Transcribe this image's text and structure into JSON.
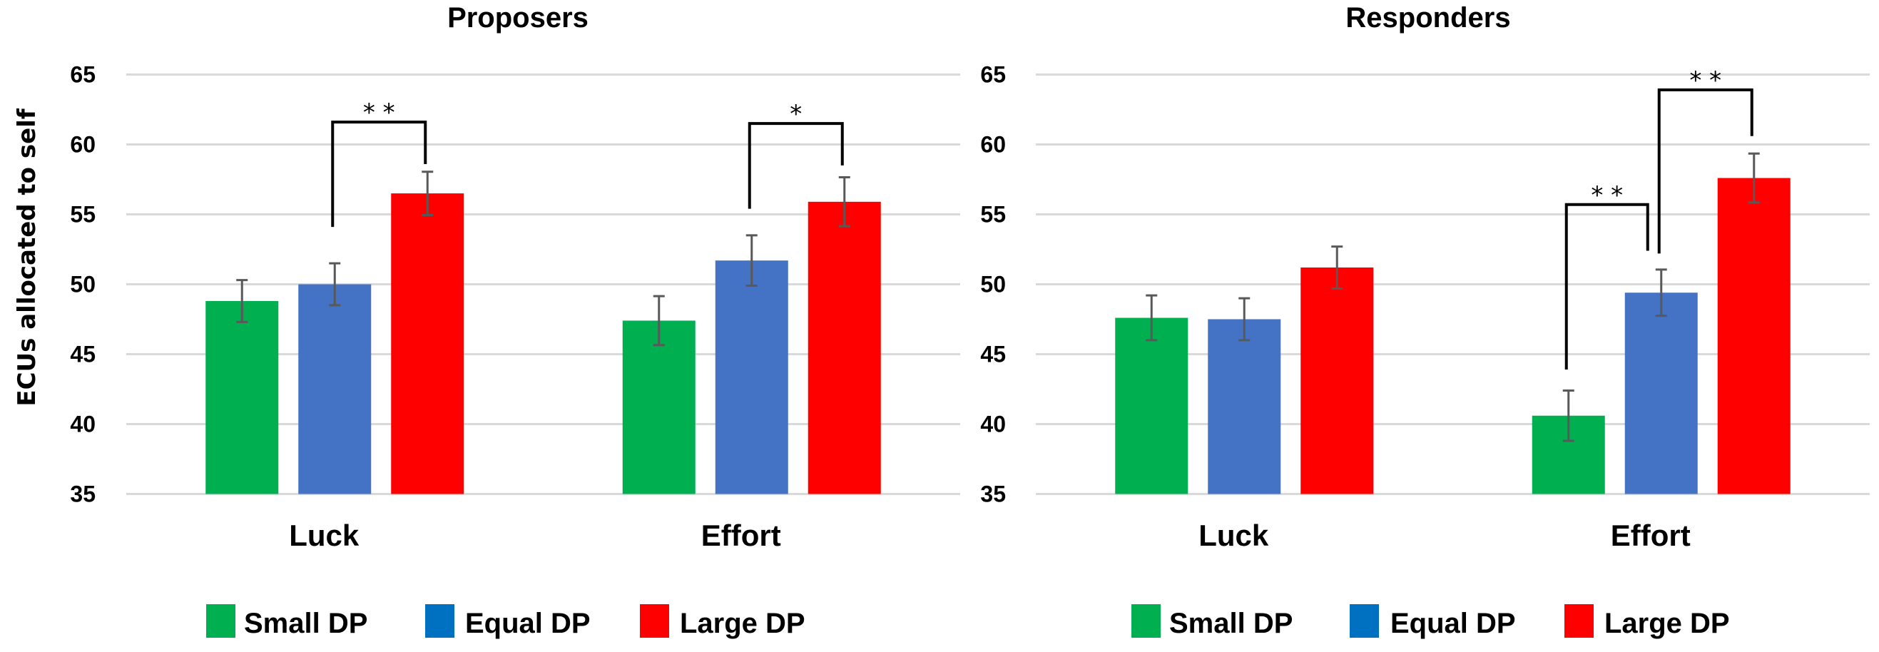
{
  "chart_data": [
    {
      "type": "bar",
      "title": "Proposers",
      "xlabel": "",
      "ylabel": "ECUs allocated to self",
      "ylim": [
        35,
        65
      ],
      "yticks": [
        "35",
        "40",
        "45",
        "50",
        "55",
        "60",
        "65"
      ],
      "grid": true,
      "categories": [
        "Luck",
        "Effort"
      ],
      "series": [
        {
          "name": "Small DP",
          "color": "#00B050",
          "values": [
            48.8,
            47.4
          ],
          "errors": [
            1.5,
            1.75
          ]
        },
        {
          "name": "Equal DP",
          "color": "#4472C4",
          "values": [
            50.0,
            51.7
          ],
          "errors": [
            1.5,
            1.8
          ]
        },
        {
          "name": "Large DP",
          "color": "#FF0000",
          "values": [
            56.5,
            55.9
          ],
          "errors": [
            1.55,
            1.75
          ]
        }
      ],
      "significance": [
        {
          "category": 0,
          "from": 1,
          "to": 2,
          "label": "**",
          "top": 61.6,
          "from_end": 54.1,
          "to_end": 58.6
        },
        {
          "category": 1,
          "from": 1,
          "to": 2,
          "label": "*",
          "top": 61.5,
          "from_end": 55.4,
          "to_end": 58.5
        }
      ],
      "legend": {
        "position": "bottom",
        "items": [
          {
            "label": "Small DP",
            "color": "#00B050"
          },
          {
            "label": "Equal DP",
            "color": "#0070C0"
          },
          {
            "label": "Large DP",
            "color": "#FF0000"
          }
        ]
      }
    },
    {
      "type": "bar",
      "title": "Responders",
      "xlabel": "",
      "ylabel": "",
      "ylim": [
        35,
        65
      ],
      "yticks": [
        "35",
        "40",
        "45",
        "50",
        "55",
        "60",
        "65"
      ],
      "grid": true,
      "categories": [
        "Luck",
        "Effort"
      ],
      "series": [
        {
          "name": "Small DP",
          "color": "#00B050",
          "values": [
            47.6,
            40.6
          ],
          "errors": [
            1.6,
            1.8
          ]
        },
        {
          "name": "Equal DP",
          "color": "#4472C4",
          "values": [
            47.5,
            49.4
          ],
          "errors": [
            1.5,
            1.65
          ]
        },
        {
          "name": "Large DP",
          "color": "#FF0000",
          "values": [
            51.2,
            57.6
          ],
          "errors": [
            1.5,
            1.75
          ]
        }
      ],
      "significance": [
        {
          "category": 1,
          "from": 0,
          "to": 1,
          "label": "**",
          "top": 55.7,
          "from_end": 43.9,
          "to_end": 52.4
        },
        {
          "category": 1,
          "from": 1,
          "to": 2,
          "label": "**",
          "top": 63.9,
          "from_end": 52.2,
          "to_end": 60.6
        }
      ],
      "legend": {
        "position": "bottom",
        "items": [
          {
            "label": "Small DP",
            "color": "#00B050"
          },
          {
            "label": "Equal DP",
            "color": "#0070C0"
          },
          {
            "label": "Large DP",
            "color": "#FF0000"
          }
        ]
      }
    }
  ]
}
